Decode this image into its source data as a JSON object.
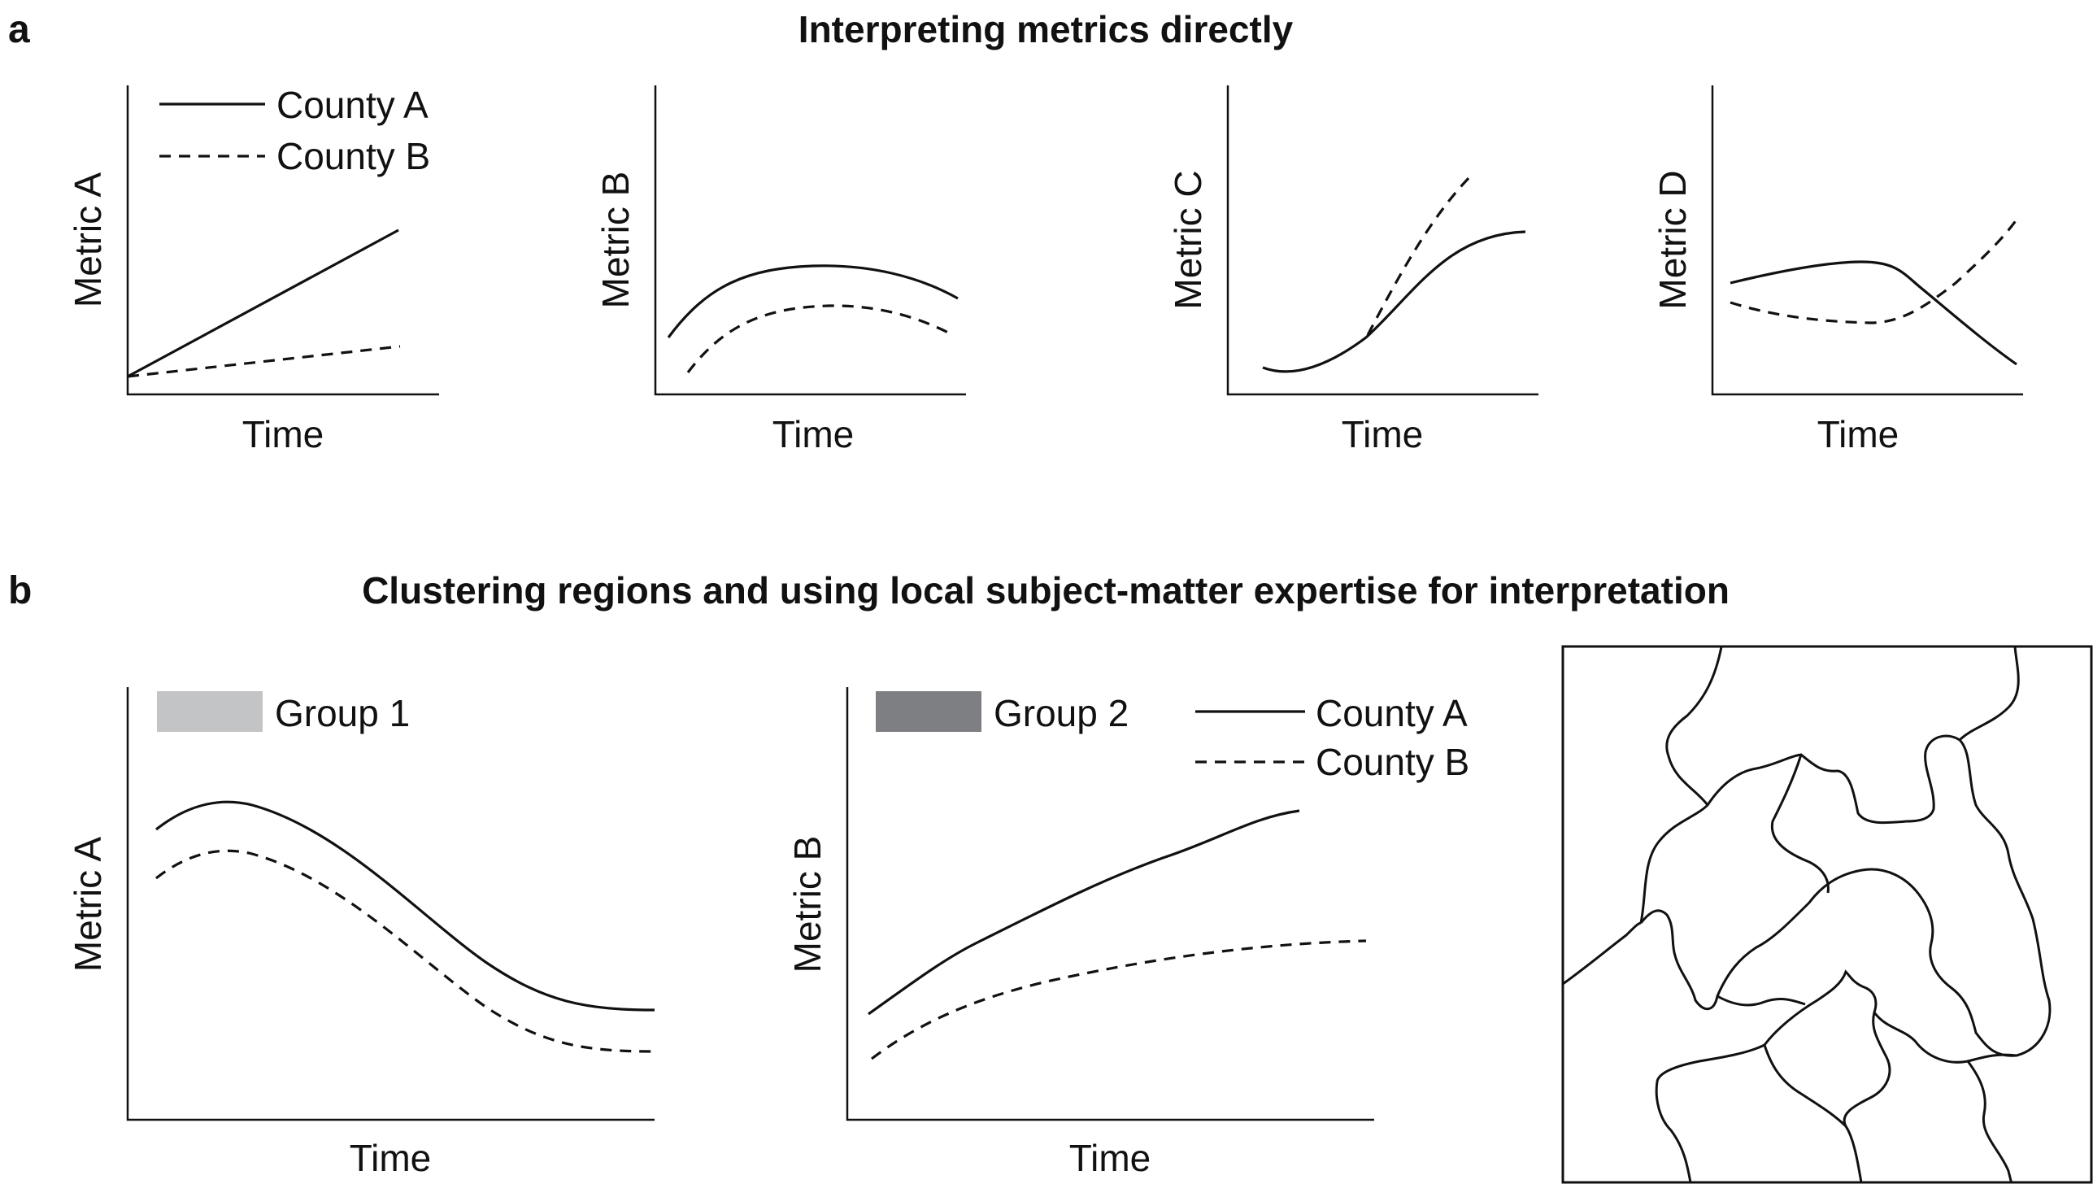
{
  "panel_a": {
    "letter": "a",
    "title": "Interpreting metrics directly",
    "legend": {
      "county_a": "County A",
      "county_b": "County B"
    },
    "plots": [
      {
        "ylabel": "Metric A",
        "xlabel": "Time"
      },
      {
        "ylabel": "Metric B",
        "xlabel": "Time"
      },
      {
        "ylabel": "Metric C",
        "xlabel": "Time"
      },
      {
        "ylabel": "Metric D",
        "xlabel": "Time"
      }
    ]
  },
  "panel_b": {
    "letter": "b",
    "title": "Clustering regions and using local subject-matter expertise for interpretation",
    "plots": [
      {
        "ylabel": "Metric A",
        "xlabel": "Time",
        "group_label": "Group 1",
        "group_color": "#c3c4c6"
      },
      {
        "ylabel": "Metric B",
        "xlabel": "Time",
        "group_label": "Group 2",
        "group_color": "#7e7f82"
      }
    ],
    "legend": {
      "county_a": "County A",
      "county_b": "County B"
    },
    "map": {
      "group1_color": "#c3c4c6",
      "group2_color": "#7e7f82"
    }
  }
}
